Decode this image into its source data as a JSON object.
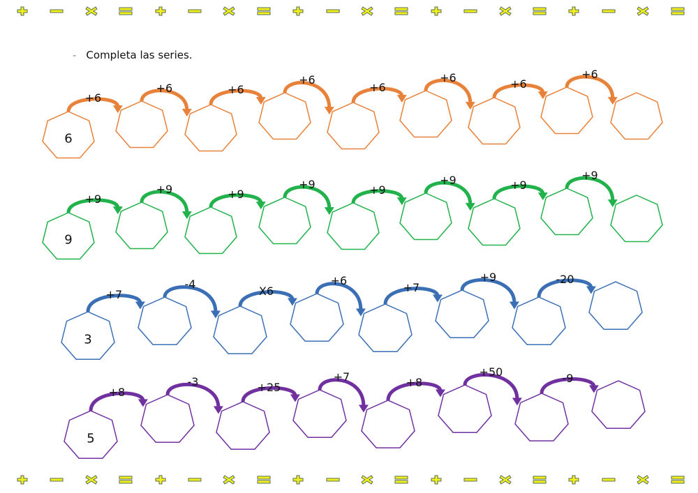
{
  "instruction": "Completa las series.",
  "border_symbols": [
    "plus",
    "minus",
    "times",
    "equals"
  ],
  "colors": {
    "symbol_fill": "#f4f21a",
    "symbol_stroke": "#556b55",
    "row1": "#e8823a",
    "row2": "#22b24c",
    "row3": "#3a6fb5",
    "row4": "#7030a0"
  },
  "rows": [
    {
      "color": "#e8823a",
      "start": "6",
      "ops": [
        "+6",
        "+6",
        "+6",
        "+6",
        "+6",
        "+6",
        "+6",
        "+6"
      ]
    },
    {
      "color": "#22b24c",
      "start": "9",
      "ops": [
        "+9",
        "+9",
        "+9",
        "+9",
        "+9",
        "+9",
        "+9",
        "+9"
      ]
    },
    {
      "color": "#3a6fb5",
      "start": "3",
      "ops": [
        "+7",
        "-4",
        "X6",
        "+6",
        "+7",
        "+9",
        "-20"
      ]
    },
    {
      "color": "#7030a0",
      "start": "5",
      "ops": [
        "+8",
        "-3",
        "+25",
        "+7",
        "+8",
        "+50",
        "-9"
      ]
    }
  ]
}
